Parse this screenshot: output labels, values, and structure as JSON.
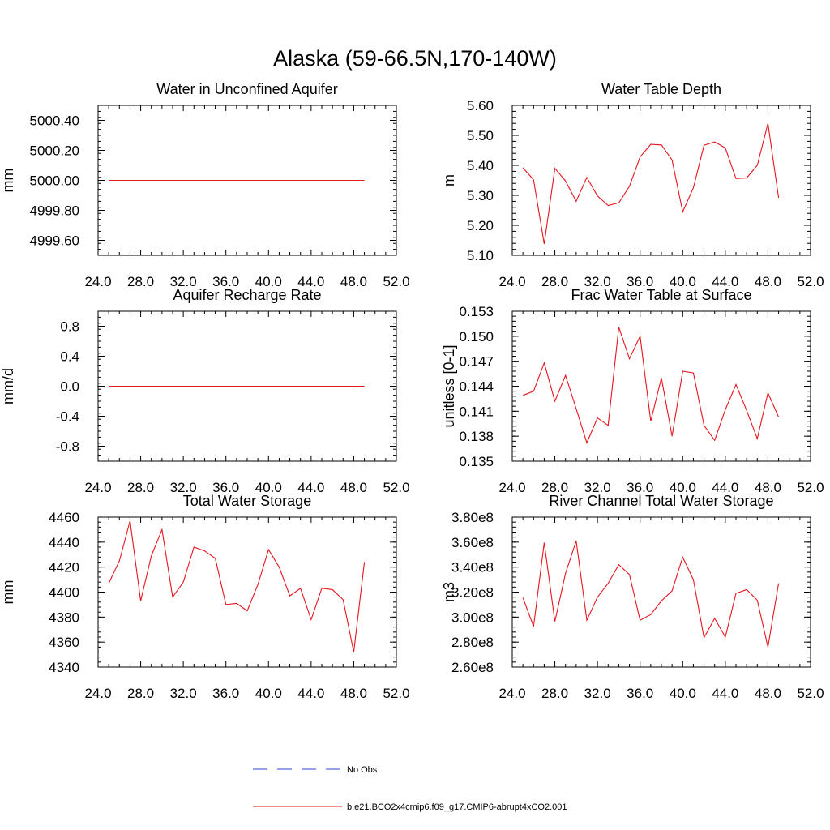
{
  "figure_title": "Alaska (59-66.5N,170-140W)",
  "legend": {
    "obs_label": "No Obs",
    "model_label": "b.e21.BCO2x4cmip6.f09_g17.CMIP6-abrupt4xCO2.001",
    "obs_color": "#3344cc",
    "model_color": "#e8141e"
  },
  "chart_data": [
    {
      "id": "p0",
      "type": "line",
      "title": "Water in Unconfined Aquifer",
      "ylabel": "mm",
      "xlim": [
        24,
        52
      ],
      "ylim": [
        4999.5,
        5000.5
      ],
      "xticks": [
        24,
        28,
        32,
        36,
        40,
        44,
        48,
        52
      ],
      "xtick_labels": [
        "24.0",
        "28.0",
        "32.0",
        "36.0",
        "40.0",
        "44.0",
        "48.0",
        "52.0"
      ],
      "yticks": [
        4999.6,
        4999.8,
        5000.0,
        5000.2,
        5000.4
      ],
      "ytick_labels": [
        "4999.60",
        "4999.80",
        "5000.00",
        "5000.20",
        "5000.40"
      ],
      "x": [
        25,
        26,
        27,
        28,
        29,
        30,
        31,
        32,
        33,
        34,
        35,
        36,
        37,
        38,
        39,
        40,
        41,
        42,
        43,
        44,
        45,
        46,
        47,
        48,
        49
      ],
      "y": [
        5000,
        5000,
        5000,
        5000,
        5000,
        5000,
        5000,
        5000,
        5000,
        5000,
        5000,
        5000,
        5000,
        5000,
        5000,
        5000,
        5000,
        5000,
        5000,
        5000,
        5000,
        5000,
        5000,
        5000,
        5000
      ]
    },
    {
      "id": "p1",
      "type": "line",
      "title": "Water Table Depth",
      "ylabel": "m",
      "xlim": [
        24,
        52
      ],
      "ylim": [
        5.1,
        5.6
      ],
      "xticks": [
        24,
        28,
        32,
        36,
        40,
        44,
        48,
        52
      ],
      "xtick_labels": [
        "24.0",
        "28.0",
        "32.0",
        "36.0",
        "40.0",
        "44.0",
        "48.0",
        "52.0"
      ],
      "yticks": [
        5.1,
        5.2,
        5.3,
        5.4,
        5.5,
        5.6
      ],
      "ytick_labels": [
        "5.10",
        "5.20",
        "5.30",
        "5.40",
        "5.50",
        "5.60"
      ],
      "x": [
        25,
        26,
        27,
        28,
        29,
        30,
        31,
        32,
        33,
        34,
        35,
        36,
        37,
        38,
        39,
        40,
        41,
        42,
        43,
        44,
        45,
        46,
        47,
        48,
        49
      ],
      "y": [
        5.392,
        5.352,
        5.138,
        5.39,
        5.348,
        5.28,
        5.36,
        5.298,
        5.266,
        5.275,
        5.33,
        5.428,
        5.47,
        5.468,
        5.418,
        5.245,
        5.325,
        5.467,
        5.478,
        5.458,
        5.356,
        5.358,
        5.4,
        5.54,
        5.292
      ]
    },
    {
      "id": "p2",
      "type": "line",
      "title": "Aquifer Recharge Rate",
      "ylabel": "mm/d",
      "xlim": [
        24,
        52
      ],
      "ylim": [
        -1.0,
        1.0
      ],
      "xticks": [
        24,
        28,
        32,
        36,
        40,
        44,
        48,
        52
      ],
      "xtick_labels": [
        "24.0",
        "28.0",
        "32.0",
        "36.0",
        "40.0",
        "44.0",
        "48.0",
        "52.0"
      ],
      "yticks": [
        -0.8,
        -0.4,
        0.0,
        0.4,
        0.8
      ],
      "ytick_labels": [
        "-0.8",
        "-0.4",
        "0.0",
        "0.4",
        "0.8"
      ],
      "x": [
        25,
        26,
        27,
        28,
        29,
        30,
        31,
        32,
        33,
        34,
        35,
        36,
        37,
        38,
        39,
        40,
        41,
        42,
        43,
        44,
        45,
        46,
        47,
        48,
        49
      ],
      "y": [
        0,
        0,
        0,
        0,
        0,
        0,
        0,
        0,
        0,
        0,
        0,
        0,
        0,
        0,
        0,
        0,
        0,
        0,
        0,
        0,
        0,
        0,
        0,
        0,
        0
      ]
    },
    {
      "id": "p3",
      "type": "line",
      "title": "Frac Water Table at Surface",
      "ylabel": "unitless [0-1]",
      "xlim": [
        24,
        52
      ],
      "ylim": [
        0.135,
        0.153
      ],
      "xticks": [
        24,
        28,
        32,
        36,
        40,
        44,
        48,
        52
      ],
      "xtick_labels": [
        "24.0",
        "28.0",
        "32.0",
        "36.0",
        "40.0",
        "44.0",
        "48.0",
        "52.0"
      ],
      "yticks": [
        0.135,
        0.138,
        0.141,
        0.144,
        0.147,
        0.15,
        0.153
      ],
      "ytick_labels": [
        "0.135",
        "0.138",
        "0.141",
        "0.144",
        "0.147",
        "0.150",
        "0.153"
      ],
      "x": [
        25,
        26,
        27,
        28,
        29,
        30,
        31,
        32,
        33,
        34,
        35,
        36,
        37,
        38,
        39,
        40,
        41,
        42,
        43,
        44,
        45,
        46,
        47,
        48,
        49
      ],
      "y": [
        0.1429,
        0.1434,
        0.1468,
        0.1422,
        0.1453,
        0.1413,
        0.1372,
        0.1402,
        0.1393,
        0.1511,
        0.1473,
        0.15,
        0.1398,
        0.145,
        0.138,
        0.1458,
        0.1456,
        0.1393,
        0.1375,
        0.1412,
        0.1442,
        0.1411,
        0.1377,
        0.1432,
        0.1403
      ]
    },
    {
      "id": "p4",
      "type": "line",
      "title": "Total Water Storage",
      "ylabel": "mm",
      "xlim": [
        24,
        52
      ],
      "ylim": [
        4340,
        4460
      ],
      "xticks": [
        24,
        28,
        32,
        36,
        40,
        44,
        48,
        52
      ],
      "xtick_labels": [
        "24.0",
        "28.0",
        "32.0",
        "36.0",
        "40.0",
        "44.0",
        "48.0",
        "52.0"
      ],
      "yticks": [
        4340,
        4360,
        4380,
        4400,
        4420,
        4440,
        4460
      ],
      "ytick_labels": [
        "4340",
        "4360",
        "4380",
        "4400",
        "4420",
        "4440",
        "4460"
      ],
      "x": [
        25,
        26,
        27,
        28,
        29,
        30,
        31,
        32,
        33,
        34,
        35,
        36,
        37,
        38,
        39,
        40,
        41,
        42,
        43,
        44,
        45,
        46,
        47,
        48,
        49
      ],
      "y": [
        4407,
        4425,
        4457,
        4393,
        4429,
        4450,
        4396,
        4408,
        4436,
        4433,
        4427,
        4390,
        4391,
        4385,
        4406,
        4434,
        4420,
        4397,
        4403,
        4378,
        4403,
        4402,
        4394,
        4352,
        4424
      ]
    },
    {
      "id": "p5",
      "type": "line",
      "title": "River Channel Total Water Storage",
      "ylabel": "m3",
      "xlim": [
        24,
        52
      ],
      "ylim": [
        260000000,
        380000000
      ],
      "xticks": [
        24,
        28,
        32,
        36,
        40,
        44,
        48,
        52
      ],
      "xtick_labels": [
        "24.0",
        "28.0",
        "32.0",
        "36.0",
        "40.0",
        "44.0",
        "48.0",
        "52.0"
      ],
      "yticks": [
        260000000,
        280000000,
        300000000,
        320000000,
        340000000,
        360000000,
        380000000
      ],
      "ytick_labels": [
        "2.60e8",
        "2.80e8",
        "3.00e8",
        "3.20e8",
        "3.40e8",
        "3.60e8",
        "3.80e8"
      ],
      "x": [
        25,
        26,
        27,
        28,
        29,
        30,
        31,
        32,
        33,
        34,
        35,
        36,
        37,
        38,
        39,
        40,
        41,
        42,
        43,
        44,
        45,
        46,
        47,
        48,
        49
      ],
      "y": [
        315500000,
        292500000,
        359500000,
        296500000,
        335000000,
        361000000,
        297500000,
        316000000,
        327000000,
        342000000,
        334000000,
        297500000,
        302000000,
        313000000,
        321000000,
        348000000,
        330000000,
        283500000,
        299000000,
        284000000,
        319000000,
        322000000,
        313500000,
        276000000,
        327000000
      ]
    }
  ]
}
